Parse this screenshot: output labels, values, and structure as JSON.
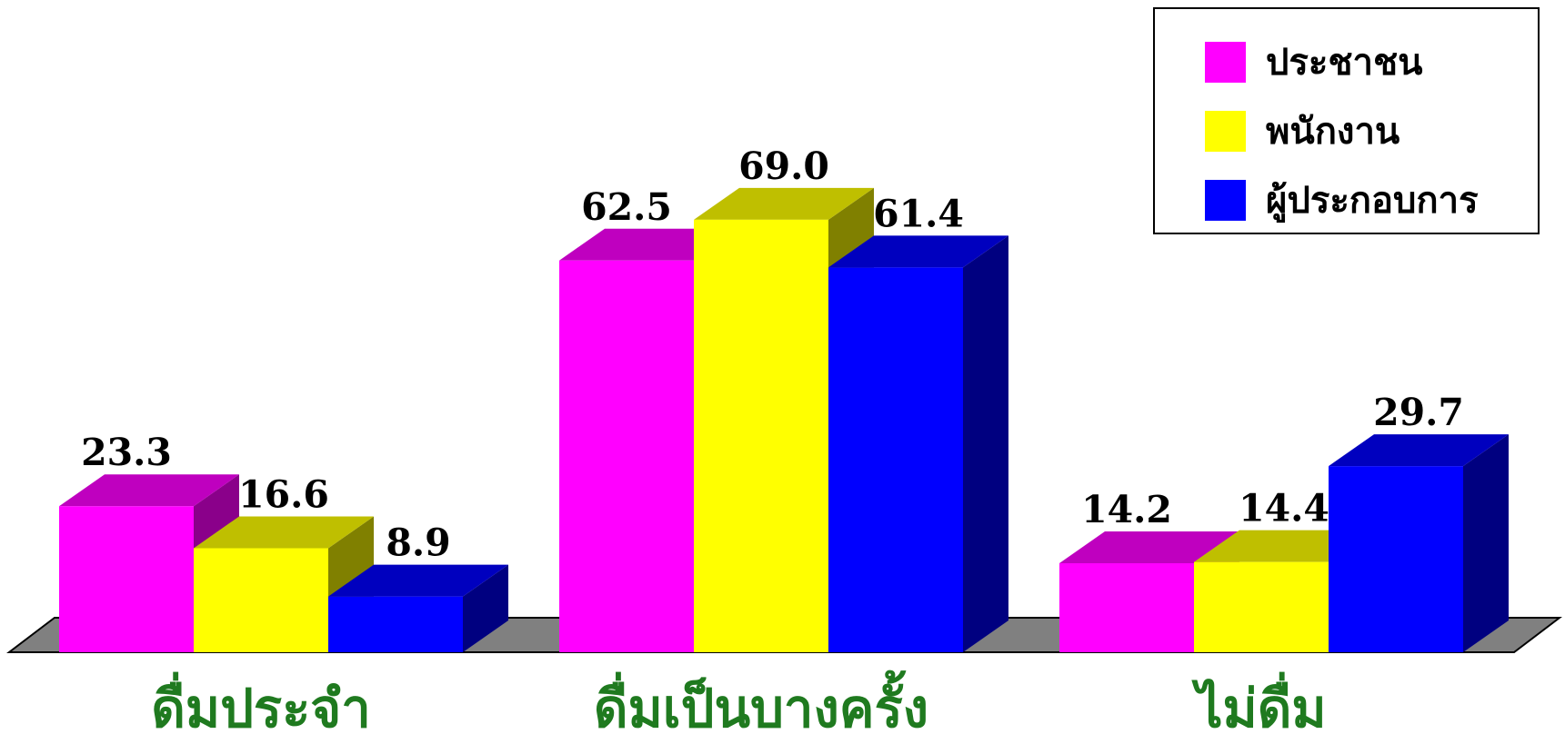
{
  "chart_data": {
    "type": "bar",
    "categories": [
      "ดื่มประจำ",
      "ดื่มเป็นบางครั้ง",
      "ไม่ดื่ม"
    ],
    "series": [
      {
        "name": "ประชาชน",
        "values": [
          23.3,
          62.5,
          14.2
        ],
        "color": "#ff00ff",
        "topColor": "#bf00bf",
        "sideColor": "#8a008a"
      },
      {
        "name": "พนักงาน",
        "values": [
          16.6,
          69.0,
          14.4
        ],
        "color": "#ffff00",
        "topColor": "#bfbf00",
        "sideColor": "#808000"
      },
      {
        "name": "ผู้ประกอบการ",
        "values": [
          8.9,
          61.4,
          29.7
        ],
        "color": "#0000ff",
        "topColor": "#0000bf",
        "sideColor": "#000080"
      }
    ],
    "value_labels": [
      "23.3",
      "16.6",
      "8.9",
      "62.5",
      "69.0",
      "61.4",
      "14.2",
      "14.4",
      "29.7"
    ],
    "ylim": [
      0,
      69
    ],
    "legend_position": "top-right",
    "grid": false,
    "floor_color": "#808080",
    "category_label_color": "#1f7a1f"
  }
}
